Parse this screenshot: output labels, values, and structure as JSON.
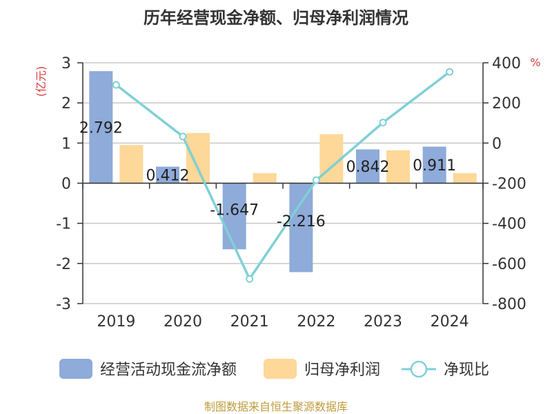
{
  "title": "历年经营现金净额、归母净利润情况",
  "source": "制图数据来自恒生聚源数据库",
  "colors": {
    "cash_flow": "#8eabd9",
    "net_profit": "#fdd898",
    "ratio_line": "#7fd0d6",
    "unit_text": "#d63a3a",
    "source_text": "#c09b3c",
    "grid": "#c8c8c8",
    "axis": "#333333"
  },
  "chart_data": {
    "type": "bar",
    "categories": [
      "2019",
      "2020",
      "2021",
      "2022",
      "2023",
      "2024"
    ],
    "series": [
      {
        "name": "经营活动现金流净额",
        "type": "bar",
        "axis": "left",
        "values": [
          2.792,
          0.412,
          -1.647,
          -2.216,
          0.842,
          0.911
        ]
      },
      {
        "name": "归母净利润",
        "type": "bar",
        "axis": "left",
        "values": [
          0.95,
          1.25,
          0.25,
          1.22,
          0.82,
          0.25
        ]
      },
      {
        "name": "净现比",
        "type": "line",
        "axis": "right",
        "values": [
          290,
          33,
          -677,
          -185,
          102,
          355
        ]
      }
    ],
    "data_labels": [
      "2.792",
      "0.412",
      "-1.647",
      "-2.216",
      "0.842",
      "0.911"
    ],
    "y_left": {
      "label": "(亿元)",
      "ylim": [
        -3,
        3
      ],
      "ticks": [
        3,
        2,
        1,
        0,
        -1,
        -2,
        -3
      ],
      "tick_labels": [
        "3",
        "2",
        "1",
        "0",
        "-1",
        "-2",
        "-3"
      ]
    },
    "y_right": {
      "label": "%",
      "ylim": [
        -800,
        400
      ],
      "ticks": [
        400,
        200,
        0,
        -200,
        -400,
        -600,
        -800
      ],
      "tick_labels": [
        "400",
        "200",
        "0",
        "-200",
        "-400",
        "-600",
        "-800"
      ]
    },
    "grid": true,
    "legend_position": "bottom"
  }
}
